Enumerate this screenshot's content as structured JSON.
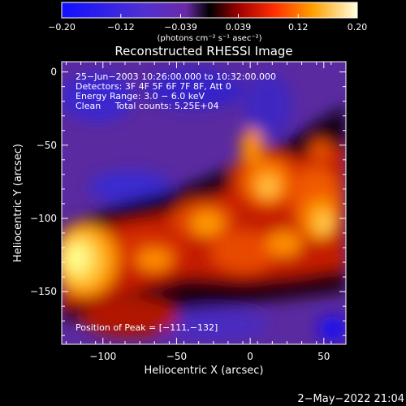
{
  "chart_data": {
    "type": "heatmap",
    "title": "Reconstructed RHESSI Image",
    "xlabel": "Heliocentric X (arcsec)",
    "ylabel": "Heliocentric Y (arcsec)",
    "xlim": [
      -128,
      65
    ],
    "ylim": [
      -186,
      7
    ],
    "xticks": [
      -100,
      -50,
      0,
      50
    ],
    "xtick_labels": [
      "−100",
      "−50",
      "0",
      "50"
    ],
    "yticks": [
      0,
      -50,
      -100,
      -150
    ],
    "ytick_labels": [
      "0",
      "−50",
      "−100",
      "−150"
    ],
    "colorbar": {
      "range": [
        -0.2,
        0.2
      ],
      "ticks": [
        -0.2,
        -0.12,
        -0.039,
        0.039,
        0.12,
        0.2
      ],
      "tick_labels": [
        "−0.20",
        "−0.12",
        "−0.039",
        "0.039",
        "0.12",
        "0.20"
      ],
      "units_label": "(photons cm⁻² s⁻¹ asec⁻²)"
    },
    "annotations": [
      "25−Jun−2003 10:26:00.000 to 10:32:00.000",
      "Detectors: 3F 4F 5F 6F 7F 8F, Att 0",
      "Energy Range: 3.0 − 6.0 keV",
      "Clean     Total counts: 5.25E+04"
    ],
    "peak_label": "Position of Peak = [−111,−132]",
    "peak_position": [
      -111,
      -132
    ],
    "image_description_blobs": [
      {
        "x": -118,
        "y": -125,
        "v": 0.2
      },
      {
        "x": -80,
        "y": -140,
        "v": 0.12
      },
      {
        "x": -45,
        "y": -110,
        "v": 0.13
      },
      {
        "x": -20,
        "y": -95,
        "v": 0.12
      },
      {
        "x": 10,
        "y": -80,
        "v": 0.15
      },
      {
        "x": 35,
        "y": -100,
        "v": 0.16
      },
      {
        "x": 55,
        "y": -110,
        "v": 0.12
      },
      {
        "x": 50,
        "y": -40,
        "v": 0.1
      }
    ]
  },
  "footer": {
    "timestamp": "2−May−2022 21:04"
  }
}
